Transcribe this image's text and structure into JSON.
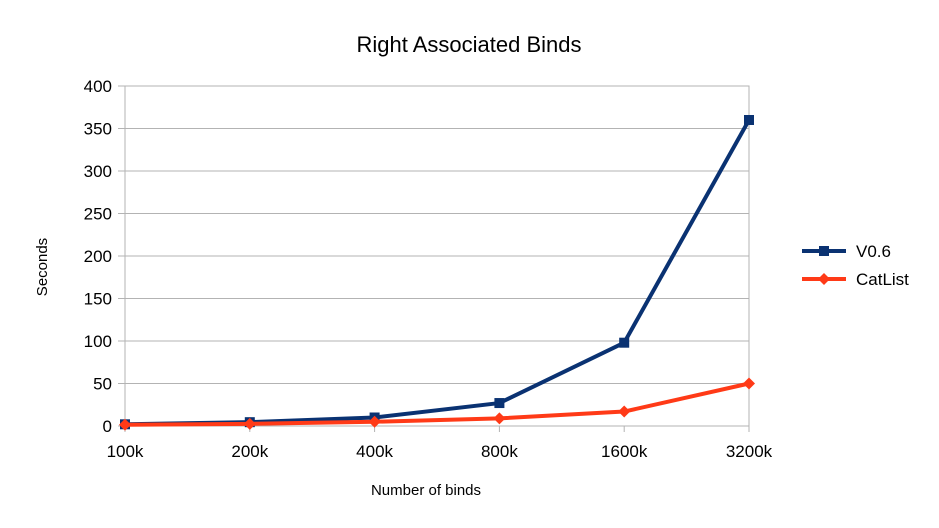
{
  "chart_data": {
    "type": "line",
    "title": "Right Associated Binds",
    "xlabel": "Number of binds",
    "ylabel": "Seconds",
    "categories": [
      "100k",
      "200k",
      "400k",
      "800k",
      "1600k",
      "3200k"
    ],
    "ylim": [
      0,
      400
    ],
    "yticks": [
      0,
      50,
      100,
      150,
      200,
      250,
      300,
      350,
      400
    ],
    "grid": true,
    "legend_position": "right",
    "series": [
      {
        "name": "V0.6",
        "values": [
          2,
          4.5,
          10,
          27,
          98,
          360
        ],
        "color": "#0a3272",
        "marker": "square"
      },
      {
        "name": "CatList",
        "values": [
          1.5,
          2.5,
          5,
          9,
          17,
          50
        ],
        "color": "#ff3a17",
        "marker": "diamond"
      }
    ]
  }
}
